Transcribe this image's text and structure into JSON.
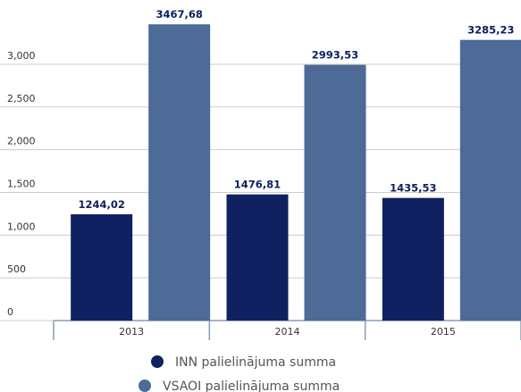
{
  "chart_data": {
    "type": "bar",
    "categories": [
      "2013",
      "2014",
      "2015"
    ],
    "series": [
      {
        "name": "INN palielinājuma summa",
        "color": "#0f2160",
        "values": [
          1244.02,
          1476.81,
          1435.53
        ],
        "value_labels": [
          "1244,02",
          "1476,81",
          "1435,53"
        ]
      },
      {
        "name": "VSAOI palielinājuma summa",
        "color": "#4e6a96",
        "values": [
          3467.68,
          2993.53,
          3285.23
        ],
        "value_labels": [
          "3467,68",
          "2993,53",
          "3285,23"
        ]
      }
    ],
    "ylim": [
      0,
      3700
    ],
    "yticks": [
      0,
      500,
      {
        "value": 1000,
        "label": "1,000"
      },
      {
        "value": 1500,
        "label": "1,500"
      },
      {
        "value": 2000,
        "label": "2,000"
      },
      {
        "value": 2500,
        "label": "2,500"
      },
      {
        "value": 3000,
        "label": "3,000"
      }
    ],
    "grid": true
  }
}
